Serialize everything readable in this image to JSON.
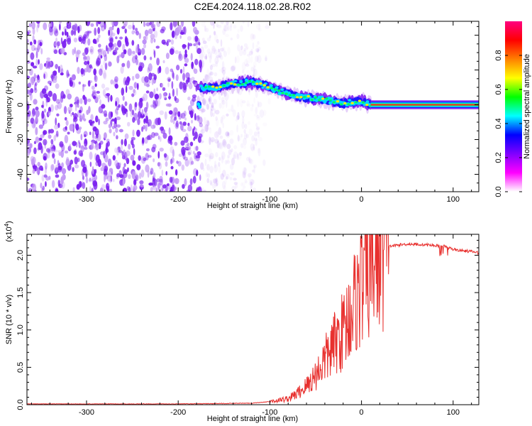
{
  "title": "C2E4.2024.118.02.28.R02",
  "colors": {
    "snr_line": "#e8302e",
    "scatter_base": "#7a1ef0",
    "axes": "#000000"
  },
  "chart_data": [
    {
      "type": "heatmap",
      "name": "spectrogram",
      "xlabel": "Height of straight line (km)",
      "ylabel": "Frequency (Hz)",
      "xlim": [
        -365,
        128
      ],
      "ylim": [
        -50,
        48
      ],
      "x_ticks": [
        -300,
        -200,
        -100,
        0,
        100
      ],
      "y_ticks": [
        -40,
        -20,
        0,
        20,
        40
      ],
      "grid": false,
      "ridge": {
        "x": [
          -175,
          -160,
          -140,
          -120,
          -100,
          -80,
          -60,
          -40,
          -20,
          0,
          10,
          40,
          80,
          128
        ],
        "y": [
          10,
          10,
          12,
          13,
          10,
          6,
          4,
          3,
          1,
          2,
          0,
          0,
          0,
          0
        ]
      },
      "noise_region_x": [
        -365,
        -130
      ],
      "colorbar": {
        "label": "Normalized spectral amplitude",
        "ticks": [
          "0.0",
          "0.2",
          "0.4",
          "0.6",
          "0.8"
        ],
        "range": [
          0,
          1
        ],
        "colormap": [
          "#ffffff",
          "#ff00ff",
          "#8000ff",
          "#0000ff",
          "#00ffff",
          "#00ff00",
          "#ffff00",
          "#ff8000",
          "#ff0000",
          "#ff0080"
        ]
      }
    },
    {
      "type": "line",
      "name": "snr",
      "xlabel": "Height of straight line (km)",
      "ylabel": "SNR (10 * v/v)",
      "y_multiplier": "(x10",
      "y_multiplier_exp": "4",
      "y_multiplier_close": ")",
      "xlim": [
        -365,
        128
      ],
      "ylim": [
        0,
        2.28
      ],
      "x_ticks": [
        -300,
        -200,
        -100,
        0,
        100
      ],
      "y_ticks": [
        "0.0",
        "0.5",
        "1.0",
        "1.5",
        "2.0"
      ],
      "grid": false,
      "series": [
        {
          "x": [
            -365,
            -300,
            -200,
            -120,
            -100,
            -80,
            -70,
            -60,
            -50,
            -40,
            -30,
            -20,
            -10,
            0,
            10,
            20,
            30,
            50,
            70,
            80,
            90,
            100,
            110,
            120,
            128
          ],
          "y": [
            0.01,
            0.01,
            0.01,
            0.02,
            0.04,
            0.08,
            0.15,
            0.25,
            0.4,
            0.6,
            0.8,
            1.0,
            1.3,
            1.6,
            1.85,
            2.05,
            2.12,
            2.15,
            2.14,
            2.13,
            2.12,
            2.08,
            2.06,
            2.05,
            2.03
          ]
        }
      ]
    }
  ]
}
